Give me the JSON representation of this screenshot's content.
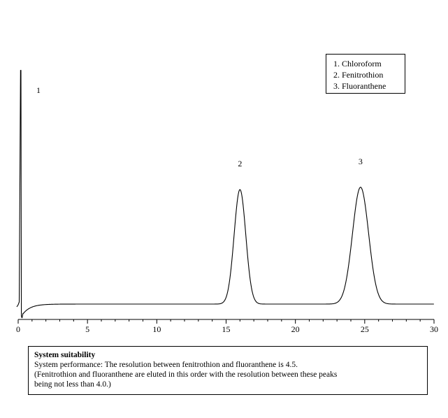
{
  "chart_data": {
    "type": "line",
    "title": "",
    "xlabel": "",
    "ylabel": "",
    "xlim": [
      0,
      30
    ],
    "x_ticks": [
      0,
      5,
      10,
      15,
      20,
      25,
      30
    ],
    "grid": false,
    "peaks": [
      {
        "label": "1",
        "retention_time": 0.2,
        "relative_height": 1.0
      },
      {
        "label": "2",
        "retention_time": 16.0,
        "relative_height": 0.49
      },
      {
        "label": "3",
        "retention_time": 24.7,
        "relative_height": 0.5
      }
    ],
    "legend": {
      "placement": "top-right",
      "entries": [
        "1. Chloroform",
        "2. Fenitrothion",
        "3. Fluoranthene"
      ]
    }
  },
  "suitability": {
    "title": "System suitability",
    "lines": [
      "System performance: The resolution between fenitrothion and fluoranthene is 4.5.",
      "(Fenitrothion and fluoranthene are eluted in this order with the resolution between these peaks",
      "being not less than 4.0.)"
    ]
  }
}
